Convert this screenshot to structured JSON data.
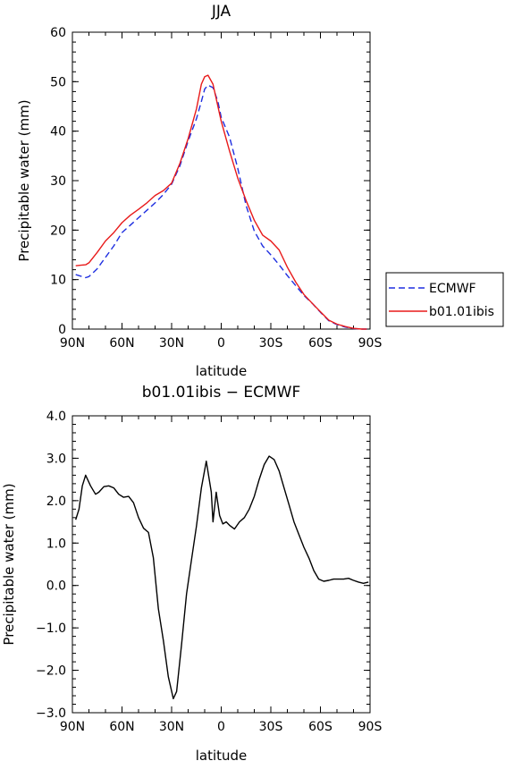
{
  "chart_data": [
    {
      "type": "line",
      "title": "JJA",
      "xlabel": "latitude",
      "ylabel": "Precipitable water (mm)",
      "xlim": [
        90,
        -90
      ],
      "ylim": [
        0,
        60
      ],
      "x_tick_values": [
        90,
        60,
        30,
        0,
        -30,
        -60,
        -90
      ],
      "x_tick_labels": [
        "90N",
        "60N",
        "30N",
        "0",
        "30S",
        "60S",
        "90S"
      ],
      "y_tick_values": [
        0,
        10,
        20,
        30,
        40,
        50,
        60
      ],
      "y_tick_labels": [
        "0",
        "10",
        "20",
        "30",
        "40",
        "50",
        "60"
      ],
      "legend_position": "right",
      "series": [
        {
          "name": "ECMWF",
          "color": "#1f2fe0",
          "dash": "dashed",
          "x": [
            88,
            85,
            82,
            80,
            75,
            70,
            65,
            60,
            55,
            50,
            45,
            40,
            35,
            30,
            25,
            20,
            15,
            12,
            10,
            8,
            5,
            2,
            0,
            -5,
            -10,
            -15,
            -20,
            -25,
            -30,
            -35,
            -40,
            -45,
            -50,
            -55,
            -60,
            -65,
            -70,
            -75,
            -80,
            -85,
            -88
          ],
          "values": [
            11.0,
            10.7,
            10.4,
            10.6,
            12.2,
            14.5,
            16.8,
            19.5,
            21.0,
            22.5,
            24.0,
            25.5,
            27.2,
            29.3,
            33.0,
            38.0,
            42.5,
            46.0,
            48.5,
            49.3,
            48.8,
            46.0,
            42.8,
            38.8,
            32.5,
            25.0,
            19.8,
            16.8,
            15.0,
            13.0,
            10.8,
            8.8,
            6.8,
            5.2,
            3.4,
            1.7,
            0.9,
            0.4,
            0.1,
            0.0,
            0.0
          ]
        },
        {
          "name": "b01.01ibis",
          "color": "#e81a1a",
          "dash": "solid",
          "x": [
            88,
            85,
            82,
            80,
            75,
            70,
            65,
            60,
            55,
            50,
            45,
            40,
            35,
            30,
            25,
            20,
            15,
            12,
            10,
            8,
            5,
            2,
            0,
            -5,
            -10,
            -15,
            -20,
            -25,
            -30,
            -35,
            -40,
            -45,
            -50,
            -55,
            -60,
            -65,
            -70,
            -75,
            -80,
            -85,
            -88
          ],
          "values": [
            12.8,
            12.9,
            13.0,
            13.4,
            15.5,
            17.8,
            19.5,
            21.5,
            23.0,
            24.2,
            25.5,
            27.0,
            28.0,
            29.5,
            33.5,
            38.5,
            44.5,
            49.5,
            51.0,
            51.3,
            49.5,
            45.0,
            42.0,
            36.0,
            30.5,
            26.0,
            22.0,
            19.0,
            17.8,
            16.0,
            12.5,
            9.5,
            7.0,
            5.2,
            3.5,
            1.8,
            1.0,
            0.5,
            0.15,
            0.0,
            0.0
          ]
        }
      ]
    },
    {
      "type": "line",
      "title": "b01.01ibis − ECMWF",
      "xlabel": "latitude",
      "ylabel": "Precipitable water (mm)",
      "xlim": [
        90,
        -90
      ],
      "ylim": [
        -3.0,
        4.0
      ],
      "x_tick_values": [
        90,
        60,
        30,
        0,
        -30,
        -60,
        -90
      ],
      "x_tick_labels": [
        "90N",
        "60N",
        "30N",
        "0",
        "30S",
        "60S",
        "90S"
      ],
      "y_tick_values": [
        4,
        3,
        2,
        1,
        0,
        -1,
        -2,
        -3
      ],
      "y_tick_labels": [
        "4.0",
        "3.0",
        "2.0",
        "1.0",
        "0.0",
        "−1.0",
        "−2.0",
        "−3.0"
      ],
      "series": [
        {
          "color": "#000000",
          "x": [
            88,
            86,
            84,
            82,
            79,
            76,
            74,
            71,
            68,
            65,
            62,
            59,
            56,
            53,
            50,
            47,
            44,
            41,
            38,
            35,
            32,
            29,
            27,
            24,
            21,
            18,
            15,
            12,
            9,
            6,
            5,
            3,
            1,
            -1,
            -3,
            -5,
            -8,
            -11,
            -14,
            -17,
            -20,
            -23,
            -26,
            -29,
            -32,
            -35,
            -38,
            -41,
            -44,
            -47,
            -50,
            -53,
            -56,
            -59,
            -62,
            -65,
            -68,
            -71,
            -74,
            -77,
            -80,
            -83,
            -86,
            -89
          ],
          "values": [
            1.55,
            1.8,
            2.35,
            2.6,
            2.35,
            2.15,
            2.2,
            2.33,
            2.35,
            2.3,
            2.15,
            2.08,
            2.1,
            1.95,
            1.6,
            1.35,
            1.25,
            0.65,
            -0.55,
            -1.3,
            -2.15,
            -2.67,
            -2.5,
            -1.4,
            -0.2,
            0.6,
            1.4,
            2.3,
            2.93,
            2.2,
            1.5,
            2.2,
            1.65,
            1.45,
            1.5,
            1.42,
            1.33,
            1.5,
            1.6,
            1.8,
            2.1,
            2.5,
            2.85,
            3.05,
            2.97,
            2.7,
            2.3,
            1.9,
            1.5,
            1.2,
            0.9,
            0.65,
            0.35,
            0.15,
            0.1,
            0.12,
            0.15,
            0.15,
            0.15,
            0.17,
            0.12,
            0.08,
            0.05,
            0.08
          ]
        }
      ]
    }
  ]
}
